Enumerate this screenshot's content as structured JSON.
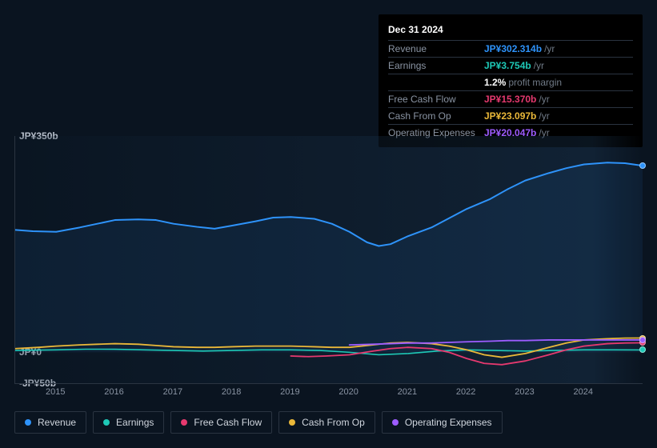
{
  "tooltip": {
    "date": "Dec 31 2024",
    "rows": [
      {
        "label": "Revenue",
        "value": "JP¥302.314b",
        "suffix": "/yr",
        "color": "#2e93fa"
      },
      {
        "label": "Earnings",
        "value": "JP¥3.754b",
        "suffix": "/yr",
        "color": "#1ec9b7"
      },
      {
        "label": "",
        "value": "1.2%",
        "suffix": "profit margin",
        "color": "#ffffff"
      },
      {
        "label": "Free Cash Flow",
        "value": "JP¥15.370b",
        "suffix": "/yr",
        "color": "#e6396f"
      },
      {
        "label": "Cash From Op",
        "value": "JP¥23.097b",
        "suffix": "/yr",
        "color": "#eab839"
      },
      {
        "label": "Operating Expenses",
        "value": "JP¥20.047b",
        "suffix": "/yr",
        "color": "#9d5cff"
      }
    ]
  },
  "chart": {
    "type": "line",
    "background_color": "#0a1420",
    "grid_color": "#2a3441",
    "yaxis": {
      "min": -50,
      "max": 350,
      "ticks": [
        {
          "v": 350,
          "label": "JP¥350b"
        },
        {
          "v": 0,
          "label": "JP¥0"
        },
        {
          "v": -50,
          "label": "-JP¥50b"
        }
      ],
      "label_color": "#b8c0cc",
      "label_fontsize": 12
    },
    "xaxis": {
      "years": [
        2015,
        2016,
        2017,
        2018,
        2019,
        2020,
        2021,
        2022,
        2023,
        2024
      ],
      "min": 2014.3,
      "max": 2025.0,
      "label_color": "#8a94a3",
      "label_fontsize": 11
    },
    "series": [
      {
        "name": "Revenue",
        "color": "#2e93fa",
        "line_width": 2,
        "area": true,
        "area_opacity": 0.08,
        "points": [
          [
            2014.3,
            198
          ],
          [
            2014.6,
            196
          ],
          [
            2015.0,
            195
          ],
          [
            2015.4,
            202
          ],
          [
            2015.7,
            208
          ],
          [
            2016.0,
            214
          ],
          [
            2016.4,
            215
          ],
          [
            2016.7,
            214
          ],
          [
            2017.0,
            208
          ],
          [
            2017.4,
            203
          ],
          [
            2017.7,
            200
          ],
          [
            2018.0,
            205
          ],
          [
            2018.4,
            212
          ],
          [
            2018.7,
            218
          ],
          [
            2019.0,
            219
          ],
          [
            2019.4,
            216
          ],
          [
            2019.7,
            208
          ],
          [
            2020.0,
            195
          ],
          [
            2020.3,
            178
          ],
          [
            2020.5,
            172
          ],
          [
            2020.7,
            175
          ],
          [
            2021.0,
            188
          ],
          [
            2021.4,
            202
          ],
          [
            2021.7,
            217
          ],
          [
            2022.0,
            232
          ],
          [
            2022.4,
            248
          ],
          [
            2022.7,
            264
          ],
          [
            2023.0,
            278
          ],
          [
            2023.4,
            290
          ],
          [
            2023.7,
            298
          ],
          [
            2024.0,
            304
          ],
          [
            2024.4,
            307
          ],
          [
            2024.7,
            306
          ],
          [
            2025.0,
            302
          ]
        ]
      },
      {
        "name": "Earnings",
        "color": "#1ec9b7",
        "line_width": 1.6,
        "points": [
          [
            2014.3,
            3
          ],
          [
            2015.0,
            4
          ],
          [
            2015.5,
            5
          ],
          [
            2016.0,
            5
          ],
          [
            2016.5,
            4
          ],
          [
            2017.0,
            3
          ],
          [
            2017.5,
            2
          ],
          [
            2018.0,
            3
          ],
          [
            2018.5,
            4
          ],
          [
            2019.0,
            4
          ],
          [
            2019.5,
            3
          ],
          [
            2020.0,
            0
          ],
          [
            2020.5,
            -4
          ],
          [
            2021.0,
            -2
          ],
          [
            2021.5,
            2
          ],
          [
            2022.0,
            4
          ],
          [
            2022.5,
            3
          ],
          [
            2023.0,
            2
          ],
          [
            2023.5,
            3
          ],
          [
            2024.0,
            4
          ],
          [
            2024.5,
            4
          ],
          [
            2025.0,
            3.8
          ]
        ]
      },
      {
        "name": "Free Cash Flow",
        "color": "#e6396f",
        "line_width": 1.8,
        "points": [
          [
            2019.0,
            -6
          ],
          [
            2019.3,
            -7
          ],
          [
            2019.6,
            -6
          ],
          [
            2020.0,
            -4
          ],
          [
            2020.4,
            2
          ],
          [
            2020.7,
            6
          ],
          [
            2021.0,
            8
          ],
          [
            2021.4,
            6
          ],
          [
            2021.7,
            0
          ],
          [
            2022.0,
            -10
          ],
          [
            2022.3,
            -18
          ],
          [
            2022.6,
            -20
          ],
          [
            2023.0,
            -14
          ],
          [
            2023.4,
            -4
          ],
          [
            2023.7,
            4
          ],
          [
            2024.0,
            10
          ],
          [
            2024.4,
            14
          ],
          [
            2024.7,
            15
          ],
          [
            2025.0,
            15.4
          ]
        ]
      },
      {
        "name": "Cash From Op",
        "color": "#eab839",
        "line_width": 1.8,
        "points": [
          [
            2014.3,
            6
          ],
          [
            2014.7,
            8
          ],
          [
            2015.0,
            10
          ],
          [
            2015.4,
            12
          ],
          [
            2015.7,
            13
          ],
          [
            2016.0,
            14
          ],
          [
            2016.4,
            13
          ],
          [
            2016.7,
            11
          ],
          [
            2017.0,
            9
          ],
          [
            2017.4,
            8
          ],
          [
            2017.7,
            8
          ],
          [
            2018.0,
            9
          ],
          [
            2018.4,
            10
          ],
          [
            2018.7,
            10
          ],
          [
            2019.0,
            10
          ],
          [
            2019.4,
            9
          ],
          [
            2019.7,
            8
          ],
          [
            2020.0,
            8
          ],
          [
            2020.4,
            12
          ],
          [
            2020.7,
            15
          ],
          [
            2021.0,
            16
          ],
          [
            2021.4,
            14
          ],
          [
            2021.7,
            10
          ],
          [
            2022.0,
            4
          ],
          [
            2022.3,
            -4
          ],
          [
            2022.6,
            -8
          ],
          [
            2023.0,
            -2
          ],
          [
            2023.4,
            8
          ],
          [
            2023.7,
            15
          ],
          [
            2024.0,
            20
          ],
          [
            2024.4,
            22
          ],
          [
            2024.7,
            23
          ],
          [
            2025.0,
            23.1
          ]
        ]
      },
      {
        "name": "Operating Expenses",
        "color": "#9d5cff",
        "line_width": 1.8,
        "points": [
          [
            2020.0,
            12
          ],
          [
            2020.4,
            13
          ],
          [
            2020.7,
            14
          ],
          [
            2021.0,
            15
          ],
          [
            2021.4,
            15
          ],
          [
            2021.7,
            16
          ],
          [
            2022.0,
            17
          ],
          [
            2022.4,
            18
          ],
          [
            2022.7,
            19
          ],
          [
            2023.0,
            19
          ],
          [
            2023.4,
            20
          ],
          [
            2023.7,
            20
          ],
          [
            2024.0,
            20
          ],
          [
            2024.4,
            20
          ],
          [
            2024.7,
            20
          ],
          [
            2025.0,
            20.0
          ]
        ]
      }
    ]
  },
  "legend": [
    {
      "label": "Revenue",
      "color": "#2e93fa"
    },
    {
      "label": "Earnings",
      "color": "#1ec9b7"
    },
    {
      "label": "Free Cash Flow",
      "color": "#e6396f"
    },
    {
      "label": "Cash From Op",
      "color": "#eab839"
    },
    {
      "label": "Operating Expenses",
      "color": "#9d5cff"
    }
  ]
}
